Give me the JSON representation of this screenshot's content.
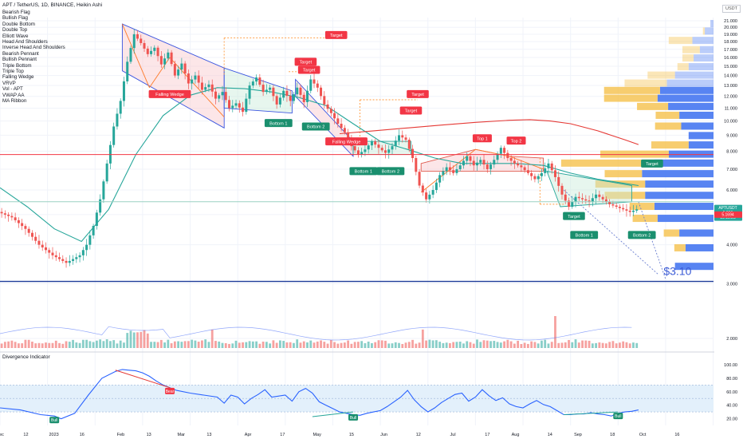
{
  "header": {
    "title": "APT / TetherUS, 1D, BINANCE, Heikin Ashi",
    "currency": "USDT"
  },
  "indicators": [
    "Bearish Flag",
    "Bullish Flag",
    "Double Bottom",
    "Double Top",
    "Elliott Wave",
    "Head And Shoulders",
    "Inverse Head And Shoulders",
    "Bearish Pennant",
    "Bullish Pennant",
    "Triple Bottom",
    "Triple Top",
    "Falling Wedge",
    "VRVP",
    "Vol - APT",
    "VWAP AA",
    "MA Ribbon"
  ],
  "oscillator": {
    "title": "Divergence Indicator"
  },
  "chart_data": [
    {
      "type": "candlestick",
      "title": "APT / TetherUS, 1D, BINANCE, Heikin Ashi",
      "x_ticks": [
        "Dec",
        "12",
        "2023",
        "16",
        "Feb",
        "13",
        "Mar",
        "13",
        "Apr",
        "17",
        "May",
        "15",
        "Jun",
        "12",
        "Jul",
        "17",
        "Aug",
        "14",
        "Sep",
        "18",
        "Oct",
        "16"
      ],
      "y_ticks": [
        "21.000",
        "20.000",
        "19.000",
        "18.000",
        "17.000",
        "16.000",
        "15.000",
        "14.000",
        "13.000",
        "12.000",
        "11.000",
        "10.000",
        "9.000",
        "8.000",
        "7.000",
        "6.000",
        "5.000",
        "4.000",
        "3.000",
        "2.000"
      ],
      "y_scale": "log",
      "ylim": [
        2.0,
        21.5
      ],
      "price_path": [
        [
          0,
          5.1
        ],
        [
          4,
          4.9
        ],
        [
          8,
          4.5
        ],
        [
          12,
          4.0
        ],
        [
          16,
          3.7
        ],
        [
          20,
          3.5
        ],
        [
          24,
          3.7
        ],
        [
          26,
          4.0
        ],
        [
          28,
          4.6
        ],
        [
          30,
          5.6
        ],
        [
          32,
          7.3
        ],
        [
          34,
          9.6
        ],
        [
          36,
          11.6
        ],
        [
          38,
          15.5
        ],
        [
          40,
          19.0
        ],
        [
          42,
          17.8
        ],
        [
          44,
          16.4
        ],
        [
          46,
          17.2
        ],
        [
          48,
          15.2
        ],
        [
          50,
          16.6
        ],
        [
          52,
          14.0
        ],
        [
          54,
          15.3
        ],
        [
          56,
          13.2
        ],
        [
          58,
          14.0
        ],
        [
          60,
          12.6
        ],
        [
          62,
          13.1
        ],
        [
          64,
          11.8
        ],
        [
          66,
          12.4
        ],
        [
          68,
          11.0
        ],
        [
          70,
          11.4
        ],
        [
          72,
          10.7
        ],
        [
          74,
          13.0
        ],
        [
          76,
          13.8
        ],
        [
          78,
          12.4
        ],
        [
          80,
          12.8
        ],
        [
          82,
          11.3
        ],
        [
          84,
          12.5
        ],
        [
          86,
          11.6
        ],
        [
          88,
          12.8
        ],
        [
          90,
          11.5
        ],
        [
          92,
          13.6
        ],
        [
          94,
          12.8
        ],
        [
          96,
          11.3
        ],
        [
          98,
          10.6
        ],
        [
          100,
          9.8
        ],
        [
          102,
          9.2
        ],
        [
          104,
          8.3
        ],
        [
          106,
          7.8
        ],
        [
          108,
          8.1
        ],
        [
          110,
          8.6
        ],
        [
          112,
          8.2
        ],
        [
          114,
          7.9
        ],
        [
          116,
          8.3
        ],
        [
          118,
          9.0
        ],
        [
          120,
          8.7
        ],
        [
          122,
          7.6
        ],
        [
          124,
          6.2
        ],
        [
          126,
          5.6
        ],
        [
          128,
          6.0
        ],
        [
          130,
          6.7
        ],
        [
          132,
          7.1
        ],
        [
          134,
          6.8
        ],
        [
          136,
          7.2
        ],
        [
          138,
          7.7
        ],
        [
          140,
          7.2
        ],
        [
          142,
          7.5
        ],
        [
          144,
          7.0
        ],
        [
          146,
          7.5
        ],
        [
          148,
          8.2
        ],
        [
          150,
          7.6
        ],
        [
          152,
          7.3
        ],
        [
          154,
          7.1
        ],
        [
          156,
          6.8
        ],
        [
          158,
          6.5
        ],
        [
          160,
          6.8
        ],
        [
          162,
          7.3
        ],
        [
          164,
          6.6
        ],
        [
          166,
          5.8
        ],
        [
          168,
          5.3
        ],
        [
          170,
          5.7
        ],
        [
          172,
          5.6
        ],
        [
          174,
          5.5
        ],
        [
          176,
          5.8
        ],
        [
          178,
          5.6
        ],
        [
          180,
          5.4
        ],
        [
          182,
          5.3
        ],
        [
          184,
          5.2
        ],
        [
          186,
          5.1
        ],
        [
          188,
          5.2
        ]
      ],
      "series": [
        {
          "name": "MA Ribbon (green)",
          "values": [
            [
              0,
              6.1
            ],
            [
              8,
              5.3
            ],
            [
              16,
              4.5
            ],
            [
              24,
              4.1
            ],
            [
              32,
              5.2
            ],
            [
              40,
              7.8
            ],
            [
              48,
              10.4
            ],
            [
              56,
              12.1
            ],
            [
              64,
              12.8
            ],
            [
              72,
              12.7
            ],
            [
              80,
              12.4
            ],
            [
              88,
              11.9
            ],
            [
              96,
              11.2
            ],
            [
              104,
              9.8
            ],
            [
              112,
              8.6
            ],
            [
              120,
              8.1
            ],
            [
              128,
              7.6
            ],
            [
              136,
              7.3
            ],
            [
              144,
              7.3
            ],
            [
              152,
              7.3
            ],
            [
              160,
              7.2
            ],
            [
              168,
              6.8
            ],
            [
              176,
              6.5
            ],
            [
              184,
              6.3
            ],
            [
              188,
              6.2
            ]
          ]
        },
        {
          "name": "MA Ribbon (red)",
          "values": [
            [
              100,
              9.1
            ],
            [
              110,
              9.3
            ],
            [
              120,
              9.5
            ],
            [
              130,
              9.7
            ],
            [
              140,
              9.9
            ],
            [
              150,
              10.05
            ],
            [
              156,
              10.1
            ],
            [
              162,
              10.0
            ],
            [
              168,
              9.8
            ],
            [
              176,
              9.3
            ],
            [
              184,
              8.7
            ],
            [
              188,
              8.4
            ]
          ]
        }
      ],
      "horizontal_lines": [
        {
          "price": 7.8,
          "color": "#f23645"
        },
        {
          "price": 5.5,
          "color": "#9ad1c2"
        },
        {
          "price": 3.05,
          "color": "#1e3c99"
        }
      ],
      "pattern_labels": [
        {
          "text": "Falling Wedge",
          "kind": "bear",
          "x": 50,
          "y": 12.2
        },
        {
          "text": "Bottom 1",
          "kind": "bull",
          "x": 82,
          "y": 9.85
        },
        {
          "text": "Bottom 2",
          "kind": "bull",
          "x": 93,
          "y": 9.6
        },
        {
          "text": "Target",
          "kind": "bear",
          "x": 99,
          "y": 18.9
        },
        {
          "text": "Target",
          "kind": "bear",
          "x": 90,
          "y": 15.5
        },
        {
          "text": "Target",
          "kind": "bear",
          "x": 91,
          "y": 14.6
        },
        {
          "text": "Falling Wedge",
          "kind": "bear",
          "x": 102,
          "y": 8.6
        },
        {
          "text": "Target",
          "kind": "bear",
          "x": 123,
          "y": 12.2
        },
        {
          "text": "Target",
          "kind": "bear",
          "x": 121,
          "y": 10.8
        },
        {
          "text": "Bottom 1",
          "kind": "bull",
          "x": 107,
          "y": 6.9
        },
        {
          "text": "Bottom 2",
          "kind": "bull",
          "x": 115,
          "y": 6.9
        },
        {
          "text": "Top 1",
          "kind": "bear",
          "x": 142,
          "y": 8.8
        },
        {
          "text": "Top 2",
          "kind": "bear",
          "x": 152,
          "y": 8.65
        },
        {
          "text": "Target",
          "kind": "bull",
          "x": 192,
          "y": 7.3
        },
        {
          "text": "Target",
          "kind": "bull",
          "x": 169,
          "y": 4.95
        },
        {
          "text": "Bottom 1",
          "kind": "bull",
          "x": 172,
          "y": 4.3
        },
        {
          "text": "Bottom 2",
          "kind": "bull",
          "x": 189,
          "y": 4.3
        }
      ],
      "price_tags": [
        {
          "lines": [
            "APTUSDT",
            "5.209",
            "19:15:25"
          ],
          "color": "#26a69a"
        },
        {
          "lines": [
            "5.1694"
          ],
          "color": "#f23645"
        }
      ],
      "annotation": "$3.10"
    },
    {
      "type": "bar",
      "title": "Vol - APT",
      "note": "daily volume histogram at the bottom of the price pane, green up / red down"
    },
    {
      "type": "line",
      "title": "Divergence Indicator",
      "y_ticks": [
        "100.00",
        "80.00",
        "60.00",
        "40.00",
        "20.00"
      ],
      "ylim": [
        10,
        100
      ],
      "band": [
        30,
        70
      ],
      "values": [
        [
          0,
          36
        ],
        [
          6,
          33
        ],
        [
          12,
          26
        ],
        [
          16,
          24
        ],
        [
          18,
          20
        ],
        [
          22,
          28
        ],
        [
          26,
          55
        ],
        [
          30,
          80
        ],
        [
          34,
          90
        ],
        [
          36,
          93
        ],
        [
          38,
          92
        ],
        [
          40,
          91
        ],
        [
          42,
          88
        ],
        [
          44,
          83
        ],
        [
          46,
          76
        ],
        [
          48,
          70
        ],
        [
          50,
          66
        ],
        [
          52,
          62
        ],
        [
          56,
          58
        ],
        [
          60,
          55
        ],
        [
          64,
          52
        ],
        [
          66,
          43
        ],
        [
          68,
          55
        ],
        [
          70,
          52
        ],
        [
          72,
          42
        ],
        [
          74,
          50
        ],
        [
          76,
          56
        ],
        [
          78,
          63
        ],
        [
          80,
          52
        ],
        [
          84,
          55
        ],
        [
          86,
          46
        ],
        [
          88,
          60
        ],
        [
          90,
          65
        ],
        [
          92,
          58
        ],
        [
          94,
          45
        ],
        [
          96,
          40
        ],
        [
          98,
          35
        ],
        [
          100,
          30
        ],
        [
          102,
          28
        ],
        [
          104,
          26
        ],
        [
          106,
          25
        ],
        [
          108,
          28
        ],
        [
          110,
          30
        ],
        [
          112,
          32
        ],
        [
          114,
          38
        ],
        [
          116,
          45
        ],
        [
          118,
          52
        ],
        [
          120,
          62
        ],
        [
          122,
          48
        ],
        [
          124,
          38
        ],
        [
          126,
          30
        ],
        [
          128,
          36
        ],
        [
          130,
          44
        ],
        [
          132,
          50
        ],
        [
          134,
          56
        ],
        [
          136,
          58
        ],
        [
          138,
          46
        ],
        [
          140,
          52
        ],
        [
          142,
          63
        ],
        [
          144,
          54
        ],
        [
          146,
          47
        ],
        [
          148,
          51
        ],
        [
          150,
          42
        ],
        [
          152,
          38
        ],
        [
          154,
          36
        ],
        [
          156,
          42
        ],
        [
          158,
          47
        ],
        [
          160,
          41
        ],
        [
          162,
          38
        ],
        [
          164,
          32
        ],
        [
          166,
          26
        ],
        [
          168,
          26
        ],
        [
          170,
          27
        ],
        [
          172,
          27
        ],
        [
          174,
          29
        ],
        [
          176,
          27
        ],
        [
          178,
          26
        ],
        [
          180,
          24
        ],
        [
          182,
          28
        ],
        [
          184,
          30
        ],
        [
          186,
          31
        ],
        [
          188,
          33
        ]
      ],
      "labels": [
        {
          "text": "Bull",
          "kind": "bull",
          "x": 16,
          "y": 18
        },
        {
          "text": "Bear",
          "kind": "bear",
          "x": 50,
          "y": 61
        },
        {
          "text": "Bull",
          "kind": "bull",
          "x": 104,
          "y": 22
        },
        {
          "text": "Bull",
          "kind": "bull",
          "x": 182,
          "y": 24
        }
      ]
    }
  ],
  "vrvp": {
    "note": "volume profile rows anchored to the right edge, blue = up volume, yellow = down volume, lighter above the value area",
    "rows": [
      {
        "price": 20.5,
        "up": 5,
        "down": 0
      },
      {
        "price": 19.4,
        "up": 14,
        "down": 3
      },
      {
        "price": 18.1,
        "up": 34,
        "down": 38
      },
      {
        "price": 16.9,
        "up": 22,
        "down": 28
      },
      {
        "price": 15.9,
        "up": 32,
        "down": 18
      },
      {
        "price": 14.9,
        "up": 40,
        "down": 18
      },
      {
        "price": 14.0,
        "up": 62,
        "down": 44
      },
      {
        "price": 13.2,
        "up": 75,
        "down": 68
      },
      {
        "price": 12.5,
        "up": 86,
        "down": 90
      },
      {
        "price": 11.8,
        "up": 90,
        "down": 86
      },
      {
        "price": 11.1,
        "up": 73,
        "down": 50
      },
      {
        "price": 10.4,
        "up": 55,
        "down": 38
      },
      {
        "price": 9.6,
        "up": 52,
        "down": 42
      },
      {
        "price": 8.95,
        "up": 40,
        "down": 0
      },
      {
        "price": 8.35,
        "up": 40,
        "down": 60
      },
      {
        "price": 7.8,
        "up": 72,
        "down": 110
      },
      {
        "price": 7.3,
        "up": 95,
        "down": 150
      },
      {
        "price": 6.75,
        "up": 115,
        "down": 60
      },
      {
        "price": 6.25,
        "up": 110,
        "down": 80
      },
      {
        "price": 5.75,
        "up": 110,
        "down": 65
      },
      {
        "price": 5.3,
        "up": 95,
        "down": 40
      },
      {
        "price": 4.85,
        "up": 90,
        "down": 40
      },
      {
        "price": 4.35,
        "up": 55,
        "down": 25
      },
      {
        "price": 3.9,
        "up": 45,
        "down": 18
      },
      {
        "price": 3.4,
        "up": 62,
        "down": 0
      }
    ]
  },
  "colors": {
    "up": "#26a69a",
    "down": "#ef5350",
    "ma_green": "#26a69a",
    "ma_red": "#e53935",
    "wedge_line": "#3a55e0",
    "wedge_fill": "#f8c8cc",
    "label_bear": "#f23645",
    "label_bull": "#1a8f6e",
    "vrvp_up": "#3b6ff0",
    "vrvp_down": "#f5c14b",
    "osc_line": "#2962ff",
    "osc_band": "#e3f0fb"
  }
}
